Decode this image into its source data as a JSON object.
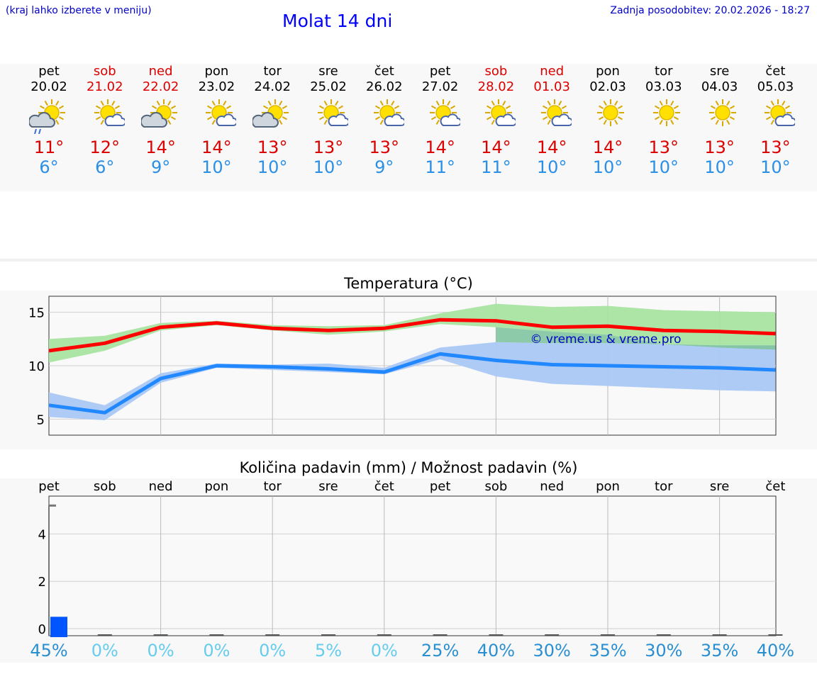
{
  "header": {
    "hint": "(kraj lahko izberete v meniju)",
    "title": "Molat 14 dni",
    "updated": "Zadnja posodobitev: 20.02.2026 - 18:27"
  },
  "days": [
    {
      "name": "pet",
      "date": "20.02",
      "weekend": false,
      "icon": "rain-partly-cloudy-icon",
      "hi": "11°",
      "lo": "6°"
    },
    {
      "name": "sob",
      "date": "21.02",
      "weekend": true,
      "icon": "sun-cloud-icon",
      "hi": "12°",
      "lo": "6°"
    },
    {
      "name": "ned",
      "date": "22.02",
      "weekend": true,
      "icon": "partly-cloudy-icon",
      "hi": "14°",
      "lo": "9°"
    },
    {
      "name": "pon",
      "date": "23.02",
      "weekend": false,
      "icon": "sun-cloud-icon",
      "hi": "14°",
      "lo": "10°"
    },
    {
      "name": "tor",
      "date": "24.02",
      "weekend": false,
      "icon": "partly-cloudy-icon",
      "hi": "13°",
      "lo": "10°"
    },
    {
      "name": "sre",
      "date": "25.02",
      "weekend": false,
      "icon": "sun-cloud-icon",
      "hi": "13°",
      "lo": "10°"
    },
    {
      "name": "čet",
      "date": "26.02",
      "weekend": false,
      "icon": "sun-cloud-icon",
      "hi": "13°",
      "lo": "9°"
    },
    {
      "name": "pet",
      "date": "27.02",
      "weekend": false,
      "icon": "sun-cloud-icon",
      "hi": "14°",
      "lo": "11°"
    },
    {
      "name": "sob",
      "date": "28.02",
      "weekend": true,
      "icon": "sun-cloud-icon",
      "hi": "14°",
      "lo": "11°"
    },
    {
      "name": "ned",
      "date": "01.03",
      "weekend": true,
      "icon": "sun-cloud-icon",
      "hi": "14°",
      "lo": "10°"
    },
    {
      "name": "pon",
      "date": "02.03",
      "weekend": false,
      "icon": "sun-icon",
      "hi": "14°",
      "lo": "10°"
    },
    {
      "name": "tor",
      "date": "03.03",
      "weekend": false,
      "icon": "sun-icon",
      "hi": "13°",
      "lo": "10°"
    },
    {
      "name": "sre",
      "date": "04.03",
      "weekend": false,
      "icon": "sun-icon",
      "hi": "13°",
      "lo": "10°"
    },
    {
      "name": "čet",
      "date": "05.03",
      "weekend": false,
      "icon": "sun-cloud-icon",
      "hi": "13°",
      "lo": "10°"
    }
  ],
  "chart_data": [
    {
      "type": "line",
      "title": "Temperatura (°C)",
      "ylim": [
        3.5,
        16.5
      ],
      "yticks": [
        5,
        10,
        15
      ],
      "x": [
        0,
        1,
        2,
        3,
        4,
        5,
        6,
        7,
        8,
        9,
        10,
        11,
        12,
        13
      ],
      "watermark": "© vreme.us & vreme.pro",
      "series": [
        {
          "name": "max",
          "color": "#ff0000",
          "values": [
            11.4,
            12.1,
            13.6,
            14.0,
            13.5,
            13.3,
            13.5,
            14.3,
            14.2,
            13.6,
            13.7,
            13.3,
            13.2,
            13.0
          ],
          "band_low": [
            10.3,
            11.4,
            13.3,
            13.8,
            13.3,
            12.9,
            13.2,
            13.9,
            13.6,
            13.2,
            12.9,
            12.0,
            11.7,
            11.5
          ],
          "band_high": [
            12.5,
            12.8,
            14.0,
            14.2,
            13.8,
            13.7,
            13.8,
            14.9,
            15.8,
            15.5,
            15.6,
            15.2,
            15.1,
            15.0
          ]
        },
        {
          "name": "min",
          "color": "#2288ff",
          "values": [
            6.3,
            5.6,
            8.8,
            10.0,
            9.9,
            9.7,
            9.4,
            11.1,
            10.5,
            10.1,
            10.0,
            9.9,
            9.8,
            9.6
          ],
          "band_low": [
            5.2,
            4.9,
            8.4,
            9.8,
            9.6,
            9.4,
            9.2,
            10.6,
            9.0,
            8.3,
            8.1,
            7.9,
            7.7,
            7.6
          ],
          "band_high": [
            7.5,
            6.3,
            9.3,
            10.2,
            10.1,
            10.2,
            9.8,
            11.7,
            12.2,
            12.1,
            12.1,
            12.0,
            11.9,
            11.9
          ]
        }
      ]
    },
    {
      "type": "bar",
      "title": "Količina padavin (mm) / Možnost padavin (%)",
      "ylim": [
        -0.3,
        5.6
      ],
      "yticks": [
        0,
        2,
        4
      ],
      "categories": [
        "pet",
        "sob",
        "ned",
        "pon",
        "tor",
        "sre",
        "čet",
        "pet",
        "sob",
        "ned",
        "pon",
        "tor",
        "sre",
        "čet"
      ],
      "values": [
        0.5,
        0,
        0,
        0,
        0,
        0,
        0,
        0,
        0,
        0,
        0,
        0,
        0,
        0
      ],
      "max_marker": 5.2,
      "chance": [
        "45%",
        "0%",
        "0%",
        "0%",
        "0%",
        "5%",
        "0%",
        "25%",
        "40%",
        "30%",
        "35%",
        "30%",
        "35%",
        "40%"
      ]
    }
  ],
  "colors": {
    "max_line": "#ff0000",
    "max_band": "#a8e4a0",
    "min_line": "#2288ff",
    "min_band": "#aac8f5",
    "overlap": "#7fc4a0",
    "bar": "#0055ff",
    "pct_low": "#66ccee",
    "pct_high": "#2a8fd0"
  }
}
